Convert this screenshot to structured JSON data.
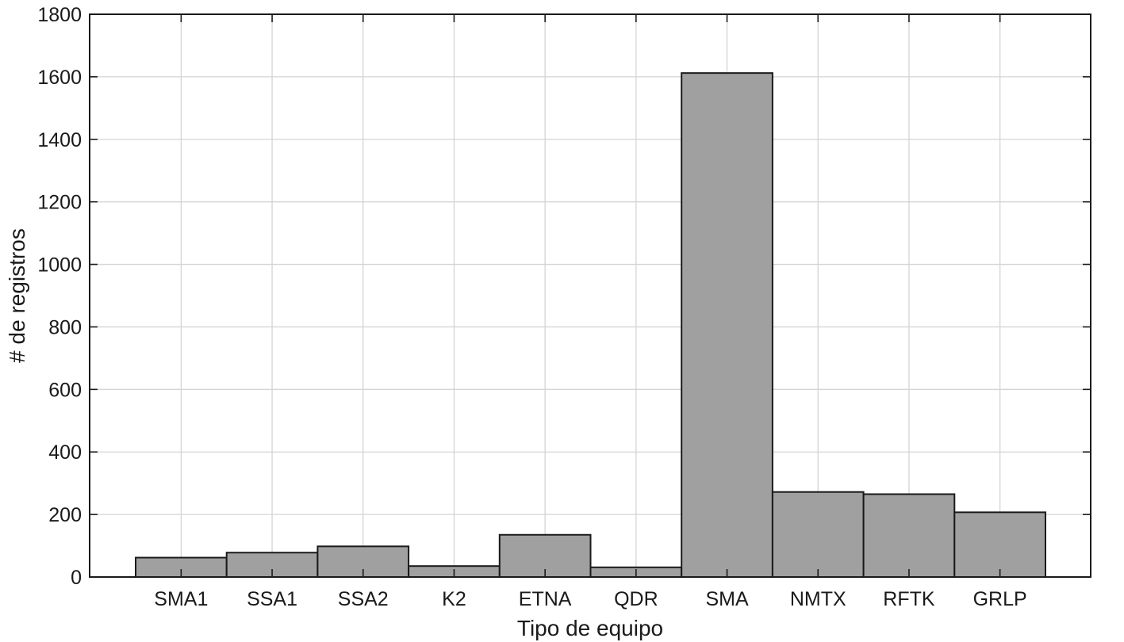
{
  "chart_data": {
    "type": "bar",
    "categories": [
      "SMA1",
      "SSA1",
      "SSA2",
      "K2",
      "ETNA",
      "QDR",
      "SMA",
      "NMTX",
      "RFTK",
      "GRLP"
    ],
    "values": [
      62,
      78,
      98,
      35,
      135,
      31,
      1612,
      272,
      265,
      207
    ],
    "xlabel": "Tipo de equipo",
    "ylabel": "# de registros",
    "ylim": [
      0,
      1800
    ],
    "yticks": [
      0,
      200,
      400,
      600,
      800,
      1000,
      1200,
      1400,
      1600,
      1800
    ],
    "grid": true,
    "bar_color": "#a0a0a0",
    "edge_color": "#1a1a1a",
    "grid_color": "#d4d4d4"
  }
}
